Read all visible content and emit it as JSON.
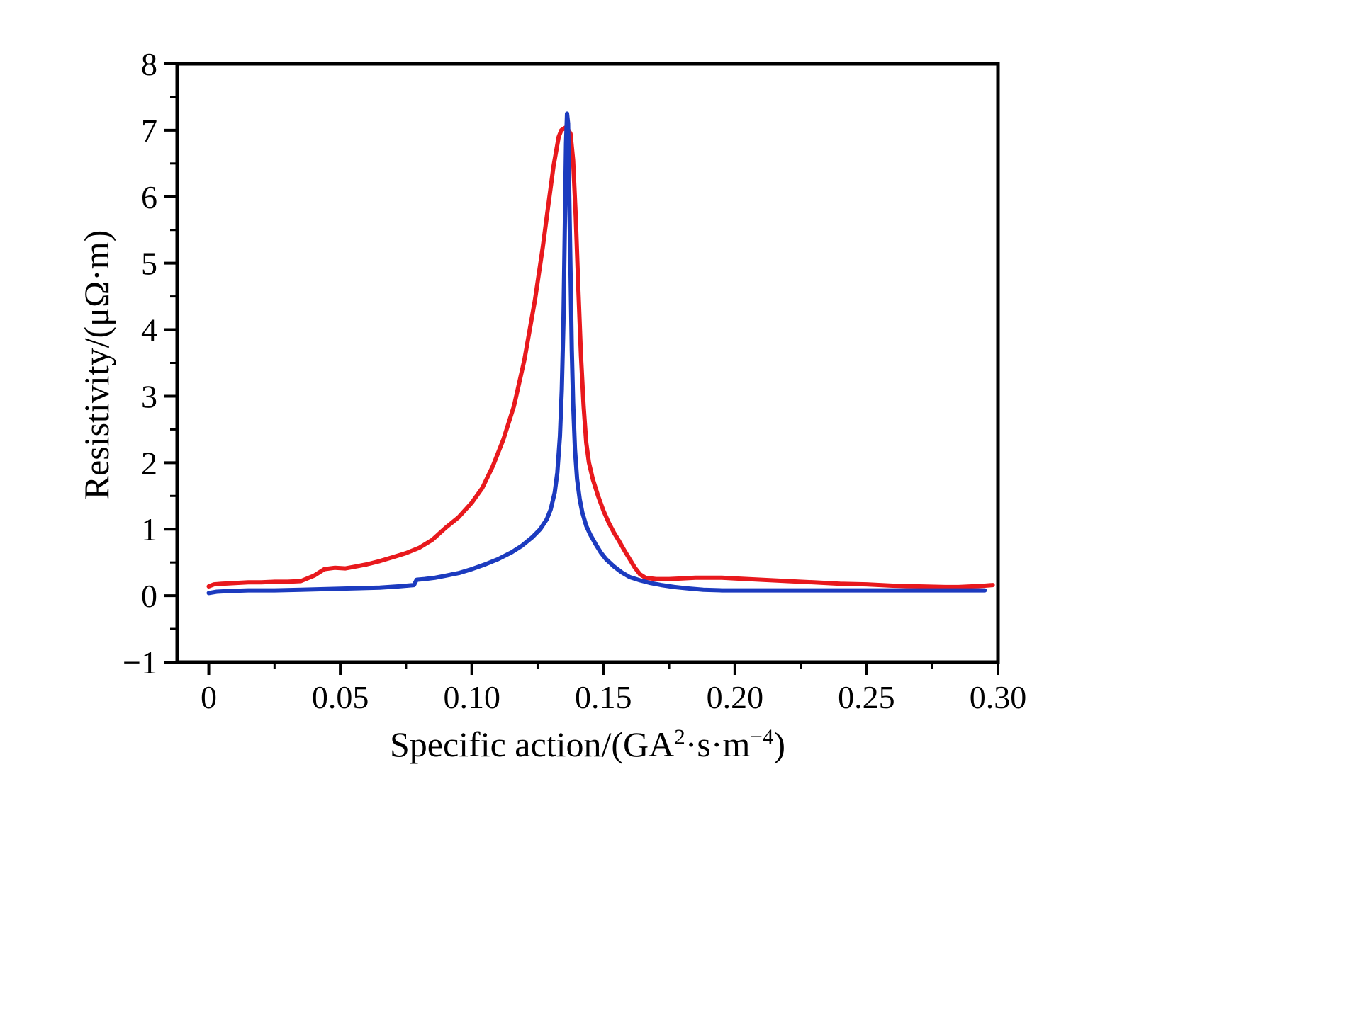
{
  "chart_data": {
    "type": "line",
    "title": "",
    "xlabel": "Specific action/(GA²·s·m⁻⁴)",
    "xlabel_parts": {
      "prefix": "Specific action/(GA",
      "exp1": "2",
      "middle": "·s·m",
      "exp2": "−4",
      "suffix": ")"
    },
    "ylabel": "Resistivity/(μΩ·m)",
    "xlim": [
      -0.012,
      0.3
    ],
    "ylim": [
      -1,
      8
    ],
    "grid": false,
    "legend": "none",
    "frame_color": "#000000",
    "background_color": "#ffffff",
    "x_ticks": {
      "values": [
        0,
        0.05,
        0.1,
        0.15,
        0.2,
        0.25,
        0.3
      ],
      "labels": [
        "0",
        "0.05",
        "0.10",
        "0.15",
        "0.20",
        "0.25",
        "0.30"
      ],
      "minor": [
        0.025,
        0.075,
        0.125,
        0.175,
        0.225,
        0.275
      ]
    },
    "y_ticks": {
      "values": [
        -1,
        0,
        1,
        2,
        3,
        4,
        5,
        6,
        7,
        8
      ],
      "labels": [
        "−1",
        "0",
        "1",
        "2",
        "3",
        "4",
        "5",
        "6",
        "7",
        "8"
      ],
      "minor": [
        -0.5,
        0.5,
        1.5,
        2.5,
        3.5,
        4.5,
        5.5,
        6.5,
        7.5
      ]
    },
    "series": [
      {
        "name": "red-curve",
        "color": "#e8191d",
        "points": [
          [
            0.0,
            0.14
          ],
          [
            0.002,
            0.17
          ],
          [
            0.005,
            0.18
          ],
          [
            0.01,
            0.19
          ],
          [
            0.015,
            0.2
          ],
          [
            0.02,
            0.2
          ],
          [
            0.025,
            0.21
          ],
          [
            0.03,
            0.21
          ],
          [
            0.035,
            0.22
          ],
          [
            0.04,
            0.3
          ],
          [
            0.044,
            0.4
          ],
          [
            0.048,
            0.42
          ],
          [
            0.052,
            0.41
          ],
          [
            0.056,
            0.44
          ],
          [
            0.06,
            0.47
          ],
          [
            0.065,
            0.52
          ],
          [
            0.07,
            0.58
          ],
          [
            0.075,
            0.64
          ],
          [
            0.08,
            0.72
          ],
          [
            0.085,
            0.84
          ],
          [
            0.09,
            1.02
          ],
          [
            0.095,
            1.18
          ],
          [
            0.1,
            1.4
          ],
          [
            0.104,
            1.62
          ],
          [
            0.108,
            1.95
          ],
          [
            0.112,
            2.35
          ],
          [
            0.116,
            2.85
          ],
          [
            0.12,
            3.55
          ],
          [
            0.124,
            4.45
          ],
          [
            0.127,
            5.25
          ],
          [
            0.129,
            5.85
          ],
          [
            0.131,
            6.45
          ],
          [
            0.133,
            6.9
          ],
          [
            0.134,
            7.0
          ],
          [
            0.136,
            7.05
          ],
          [
            0.1375,
            6.95
          ],
          [
            0.1385,
            6.55
          ],
          [
            0.1395,
            5.7
          ],
          [
            0.1405,
            4.6
          ],
          [
            0.1415,
            3.6
          ],
          [
            0.1425,
            2.85
          ],
          [
            0.1435,
            2.3
          ],
          [
            0.1445,
            2.0
          ],
          [
            0.146,
            1.75
          ],
          [
            0.148,
            1.5
          ],
          [
            0.15,
            1.28
          ],
          [
            0.152,
            1.1
          ],
          [
            0.154,
            0.95
          ],
          [
            0.156,
            0.82
          ],
          [
            0.158,
            0.68
          ],
          [
            0.16,
            0.55
          ],
          [
            0.162,
            0.42
          ],
          [
            0.164,
            0.32
          ],
          [
            0.166,
            0.27
          ],
          [
            0.17,
            0.25
          ],
          [
            0.175,
            0.25
          ],
          [
            0.18,
            0.26
          ],
          [
            0.185,
            0.27
          ],
          [
            0.19,
            0.27
          ],
          [
            0.195,
            0.27
          ],
          [
            0.2,
            0.26
          ],
          [
            0.21,
            0.24
          ],
          [
            0.22,
            0.22
          ],
          [
            0.23,
            0.2
          ],
          [
            0.24,
            0.18
          ],
          [
            0.25,
            0.17
          ],
          [
            0.26,
            0.15
          ],
          [
            0.27,
            0.14
          ],
          [
            0.28,
            0.13
          ],
          [
            0.285,
            0.13
          ],
          [
            0.29,
            0.14
          ],
          [
            0.295,
            0.15
          ],
          [
            0.298,
            0.16
          ]
        ]
      },
      {
        "name": "blue-curve",
        "color": "#1c3bbf",
        "points": [
          [
            0.0,
            0.04
          ],
          [
            0.003,
            0.06
          ],
          [
            0.008,
            0.07
          ],
          [
            0.015,
            0.08
          ],
          [
            0.025,
            0.08
          ],
          [
            0.035,
            0.09
          ],
          [
            0.045,
            0.1
          ],
          [
            0.055,
            0.11
          ],
          [
            0.065,
            0.12
          ],
          [
            0.072,
            0.14
          ],
          [
            0.078,
            0.16
          ],
          [
            0.079,
            0.24
          ],
          [
            0.082,
            0.25
          ],
          [
            0.086,
            0.27
          ],
          [
            0.09,
            0.3
          ],
          [
            0.095,
            0.34
          ],
          [
            0.1,
            0.4
          ],
          [
            0.105,
            0.47
          ],
          [
            0.11,
            0.55
          ],
          [
            0.115,
            0.65
          ],
          [
            0.119,
            0.75
          ],
          [
            0.123,
            0.88
          ],
          [
            0.126,
            1.0
          ],
          [
            0.1285,
            1.15
          ],
          [
            0.13,
            1.3
          ],
          [
            0.1315,
            1.55
          ],
          [
            0.1325,
            1.85
          ],
          [
            0.1335,
            2.4
          ],
          [
            0.1342,
            3.1
          ],
          [
            0.1348,
            4.1
          ],
          [
            0.1353,
            5.4
          ],
          [
            0.1358,
            6.8
          ],
          [
            0.1362,
            7.25
          ],
          [
            0.1366,
            7.1
          ],
          [
            0.137,
            6.1
          ],
          [
            0.1375,
            4.9
          ],
          [
            0.138,
            3.7
          ],
          [
            0.1385,
            2.9
          ],
          [
            0.1392,
            2.2
          ],
          [
            0.14,
            1.75
          ],
          [
            0.141,
            1.45
          ],
          [
            0.142,
            1.25
          ],
          [
            0.1435,
            1.05
          ],
          [
            0.145,
            0.92
          ],
          [
            0.147,
            0.78
          ],
          [
            0.149,
            0.65
          ],
          [
            0.151,
            0.55
          ],
          [
            0.154,
            0.44
          ],
          [
            0.157,
            0.35
          ],
          [
            0.16,
            0.28
          ],
          [
            0.164,
            0.23
          ],
          [
            0.168,
            0.19
          ],
          [
            0.172,
            0.16
          ],
          [
            0.177,
            0.13
          ],
          [
            0.182,
            0.11
          ],
          [
            0.188,
            0.09
          ],
          [
            0.195,
            0.08
          ],
          [
            0.205,
            0.08
          ],
          [
            0.22,
            0.08
          ],
          [
            0.24,
            0.08
          ],
          [
            0.26,
            0.08
          ],
          [
            0.28,
            0.08
          ],
          [
            0.295,
            0.08
          ]
        ]
      }
    ]
  }
}
